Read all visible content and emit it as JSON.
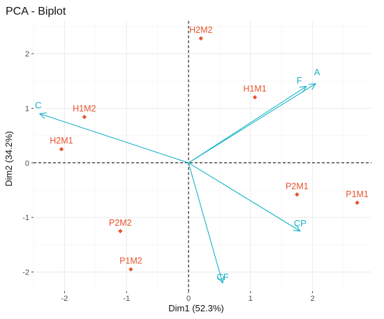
{
  "chart_data": {
    "type": "scatter",
    "title": "PCA - Biplot",
    "xlabel": "Dim1 (52.3%)",
    "ylabel": "Dim2 (34.2%)",
    "xlim": [
      -2.5,
      2.95
    ],
    "ylim": [
      -2.35,
      2.6
    ],
    "xticks": [
      -2,
      -1,
      0,
      1,
      2
    ],
    "yticks": [
      -2,
      -1,
      0,
      1,
      2
    ],
    "grid": true,
    "reference_lines": {
      "x": 0,
      "y": 0
    },
    "colors": {
      "individuals": "#e8542e",
      "variables": "#17b3c7",
      "reference": "#000000",
      "grid_major": "#ececec",
      "grid_minor": "#f6f6f6"
    },
    "individuals": [
      {
        "label": "H2M2",
        "x": 0.2,
        "y": 2.28
      },
      {
        "label": "H1M1",
        "x": 1.07,
        "y": 1.2
      },
      {
        "label": "H1M2",
        "x": -1.68,
        "y": 0.84
      },
      {
        "label": "H2M1",
        "x": -2.05,
        "y": 0.25
      },
      {
        "label": "P2M1",
        "x": 1.75,
        "y": -0.58
      },
      {
        "label": "P1M1",
        "x": 2.72,
        "y": -0.73
      },
      {
        "label": "P2M2",
        "x": -1.1,
        "y": -1.25
      },
      {
        "label": "P1M2",
        "x": -0.93,
        "y": -1.95
      }
    ],
    "variables": [
      {
        "label": "A",
        "x": 2.05,
        "y": 1.45
      },
      {
        "label": "F",
        "x": 1.9,
        "y": 1.4
      },
      {
        "label": "C",
        "x": -2.4,
        "y": 0.9
      },
      {
        "label": "CP",
        "x": 1.8,
        "y": -1.25
      },
      {
        "label": "CF",
        "x": 0.55,
        "y": -2.2
      }
    ]
  }
}
